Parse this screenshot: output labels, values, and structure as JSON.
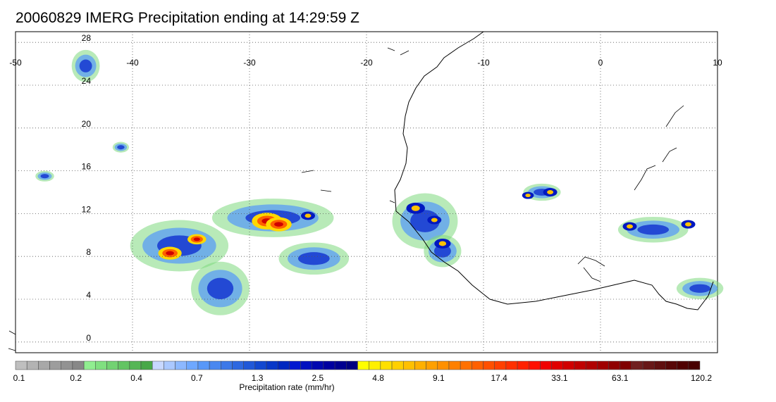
{
  "title": "20060829 IMERG Precipitation ending at 14:29:59 Z",
  "map": {
    "lon_min": -50,
    "lon_max": 10,
    "lat_min": -1,
    "lat_max": 29,
    "lon_ticks": [
      -50,
      -40,
      -30,
      -20,
      -10,
      0,
      10
    ],
    "lat_ticks": [
      0,
      4,
      8,
      12,
      16,
      20,
      24,
      28
    ],
    "lon_labels": [
      "-50",
      "-40",
      "-30",
      "-20",
      "-10",
      "0",
      "10"
    ],
    "lat_labels": [
      "0",
      "4",
      "8",
      "12",
      "16",
      "20",
      "24",
      "28"
    ]
  },
  "colorbar": {
    "label": "Precipitation rate (mm/hr)",
    "tick_labels": [
      "0.1",
      "0.2",
      "0.4",
      "0.7",
      "1.3",
      "2.5",
      "4.8",
      "9.1",
      "17.4",
      "33.1",
      "63.1",
      "120.2"
    ],
    "colors": [
      "#bfbfbf",
      "#b3b3b3",
      "#a8a8a8",
      "#9d9d9d",
      "#929292",
      "#888888",
      "#90ee90",
      "#80e080",
      "#72d272",
      "#63c463",
      "#56b656",
      "#48a848",
      "#c8d8ff",
      "#aac8ff",
      "#8cb8ff",
      "#6ea8ff",
      "#5898f8",
      "#4a88f0",
      "#3c78e8",
      "#2e68e0",
      "#2058d8",
      "#1248d0",
      "#0838c8",
      "#0028c0",
      "#0018d0",
      "#0010c0",
      "#0008b0",
      "#0000a0",
      "#000090",
      "#000080",
      "#ffff00",
      "#fff000",
      "#ffe000",
      "#ffd000",
      "#ffc000",
      "#ffb000",
      "#ffa000",
      "#ff9000",
      "#ff8000",
      "#ff7000",
      "#ff6000",
      "#ff5000",
      "#ff4000",
      "#ff3000",
      "#ff2000",
      "#ff1000",
      "#f00000",
      "#e00000",
      "#d00000",
      "#c00000",
      "#b00000",
      "#a00000",
      "#900000",
      "#800000",
      "#702020",
      "#681818",
      "#601010",
      "#580808",
      "#500000",
      "#480000"
    ]
  },
  "precip_cells": [
    {
      "lon": -36.8,
      "lat": 8.3,
      "r": 1.0,
      "level": "heavy"
    },
    {
      "lon": -34.5,
      "lat": 9.6,
      "r": 0.8,
      "level": "heavy"
    },
    {
      "lon": -28.5,
      "lat": 11.3,
      "r": 1.3,
      "level": "heavy"
    },
    {
      "lon": -27.5,
      "lat": 11.0,
      "r": 1.1,
      "level": "heavy"
    },
    {
      "lon": -25.0,
      "lat": 11.8,
      "r": 0.6,
      "level": "moderate"
    },
    {
      "lon": -15.8,
      "lat": 12.5,
      "r": 0.8,
      "level": "moderate"
    },
    {
      "lon": -14.2,
      "lat": 11.4,
      "r": 0.6,
      "level": "moderate"
    },
    {
      "lon": -13.5,
      "lat": 9.2,
      "r": 0.7,
      "level": "moderate"
    },
    {
      "lon": -6.2,
      "lat": 13.7,
      "r": 0.5,
      "level": "moderate"
    },
    {
      "lon": -4.3,
      "lat": 14.0,
      "r": 0.6,
      "level": "moderate"
    },
    {
      "lon": 2.5,
      "lat": 10.8,
      "r": 0.6,
      "level": "moderate"
    },
    {
      "lon": 7.5,
      "lat": 11.0,
      "r": 0.6,
      "level": "moderate"
    }
  ],
  "light_areas": [
    {
      "lon": -36.0,
      "lat": 9.0,
      "rx": 4.2,
      "ry": 2.4
    },
    {
      "lon": -28.0,
      "lat": 11.6,
      "rx": 5.2,
      "ry": 1.8
    },
    {
      "lon": -24.5,
      "lat": 7.8,
      "rx": 3.0,
      "ry": 1.5
    },
    {
      "lon": -32.5,
      "lat": 5.0,
      "rx": 2.5,
      "ry": 2.5
    },
    {
      "lon": -15.0,
      "lat": 11.3,
      "rx": 2.8,
      "ry": 2.6
    },
    {
      "lon": -13.5,
      "lat": 8.5,
      "rx": 1.6,
      "ry": 1.5
    },
    {
      "lon": -44.0,
      "lat": 25.8,
      "rx": 1.2,
      "ry": 1.5
    },
    {
      "lon": -5.0,
      "lat": 14.0,
      "rx": 1.6,
      "ry": 0.8
    },
    {
      "lon": 4.5,
      "lat": 10.5,
      "rx": 3.0,
      "ry": 1.2
    },
    {
      "lon": 8.5,
      "lat": 5.0,
      "rx": 2.0,
      "ry": 1.0
    },
    {
      "lon": -41.0,
      "lat": 18.2,
      "rx": 0.7,
      "ry": 0.5
    },
    {
      "lon": -47.5,
      "lat": 15.5,
      "rx": 0.8,
      "ry": 0.5
    }
  ]
}
